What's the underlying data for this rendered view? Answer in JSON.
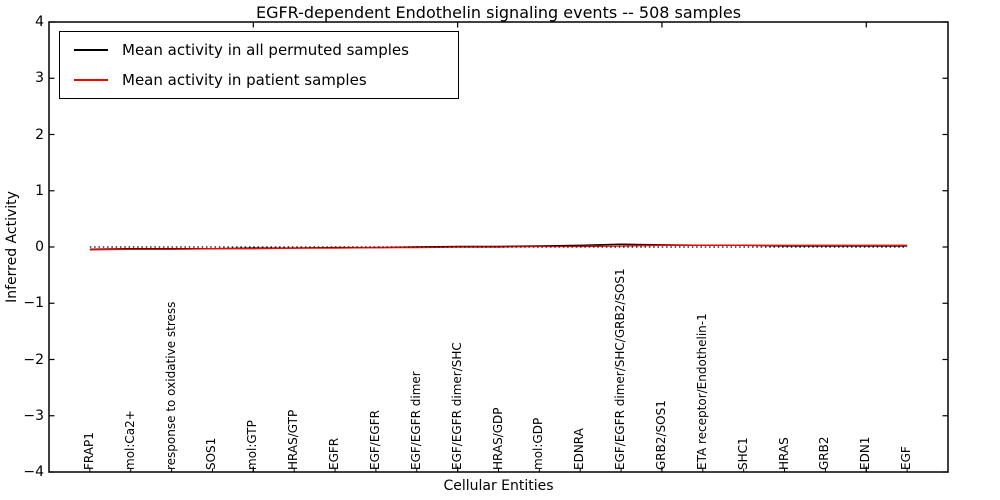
{
  "chart_data": {
    "type": "line",
    "title": "EGFR-dependent Endothelin signaling events -- 508 samples",
    "xlabel": "Cellular Entities",
    "ylabel": "Inferred Activity",
    "xlim": [
      0,
      22
    ],
    "ylim": [
      -4,
      4
    ],
    "grid": false,
    "legend_position": "upper left",
    "yticks": [
      4,
      3,
      2,
      1,
      0,
      -1,
      -2,
      -3,
      -4
    ],
    "ytick_labels": [
      "4",
      "3",
      "2",
      "1",
      "0",
      "−1",
      "−2",
      "−3",
      "−4"
    ],
    "xticks": [
      5,
      10,
      15,
      20
    ],
    "categories": [
      "FRAP1",
      "mol:Ca2+",
      "response to oxidative stress",
      "SOS1",
      "mol:GTP",
      "HRAS/GTP",
      "EGFR",
      "EGF/EGFR",
      "EGF/EGFR dimer",
      "EGF/EGFR dimer/SHC",
      "HRAS/GDP",
      "mol:GDP",
      "EDNRA",
      "EGF/EGFR dimer/SHC/GRB2/SOS1",
      "GRB2/SOS1",
      "ETA receptor/Endothelin-1",
      "SHC1",
      "HRAS",
      "GRB2",
      "EDN1",
      "EGF"
    ],
    "series": [
      {
        "name": "Mean activity in all permuted samples",
        "color": "#000000",
        "style": "solid",
        "values": [
          -0.04,
          -0.03,
          -0.03,
          -0.03,
          -0.02,
          -0.02,
          -0.01,
          -0.01,
          0.0,
          0.01,
          0.01,
          0.02,
          0.03,
          0.05,
          0.04,
          0.03,
          0.03,
          0.02,
          0.02,
          0.02,
          0.02
        ]
      },
      {
        "name": "Mean activity in patient samples",
        "color": "#ff0000",
        "style": "solid",
        "values": [
          -0.05,
          -0.04,
          -0.04,
          -0.03,
          -0.03,
          -0.02,
          -0.02,
          -0.01,
          -0.01,
          0.0,
          0.0,
          0.01,
          0.01,
          0.02,
          0.03,
          0.03,
          0.03,
          0.03,
          0.03,
          0.03,
          0.03
        ]
      }
    ],
    "reference_line": {
      "y": 0,
      "style": "dotted",
      "color": "#000000"
    }
  }
}
